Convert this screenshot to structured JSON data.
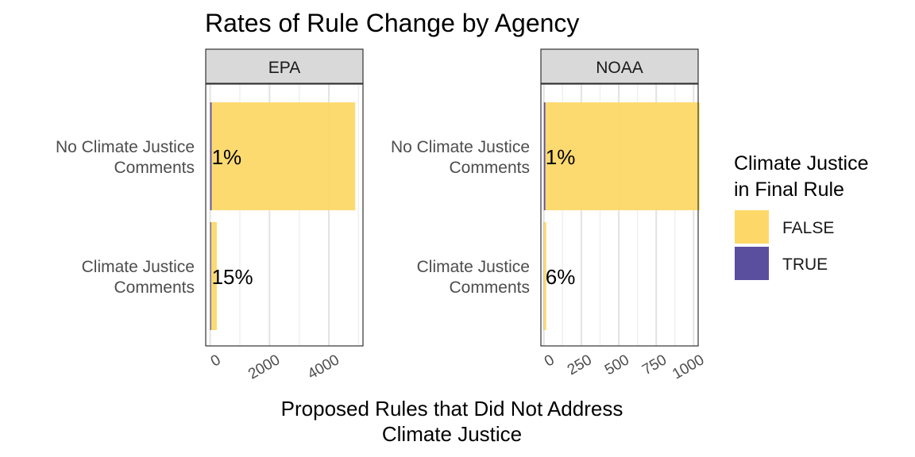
{
  "chart_data": {
    "type": "bar",
    "orientation": "horizontal",
    "stacked": true,
    "title": "Rates of Rule Change by Agency",
    "xlabel": "Proposed Rules that Did Not Address\nClimate Justice",
    "ylabel": "",
    "categories": [
      "No Climate Justice\nComments",
      "Climate Justice\nComments"
    ],
    "legend": {
      "title": "Climate Justice\nin Final Rule",
      "position": "right",
      "entries": [
        {
          "label": "FALSE",
          "color": "#FDD868"
        },
        {
          "label": "TRUE",
          "color": "#5A4E9E"
        }
      ]
    },
    "grid": true,
    "panels": [
      {
        "name": "EPA",
        "xlim": [
          -150,
          5150
        ],
        "xticks": [
          0,
          2000,
          4000
        ],
        "xtick_labels": [
          "0",
          "2000",
          "4000"
        ],
        "series": [
          {
            "name": "FALSE",
            "values": [
              4840,
              190
            ]
          },
          {
            "name": "TRUE",
            "values": [
              49,
              34
            ]
          }
        ],
        "bar_labels": [
          "1%",
          "15%"
        ]
      },
      {
        "name": "NOAA",
        "xlim": [
          -20,
          1030
        ],
        "xticks": [
          0,
          250,
          500,
          750,
          1000
        ],
        "xtick_labels": [
          "0",
          "250",
          "500",
          "750",
          "1000"
        ],
        "series": [
          {
            "name": "FALSE",
            "values": [
              1030,
              15
            ]
          },
          {
            "name": "TRUE",
            "values": [
              10,
              1
            ]
          }
        ],
        "bar_labels": [
          "1%",
          "6%"
        ]
      }
    ]
  }
}
